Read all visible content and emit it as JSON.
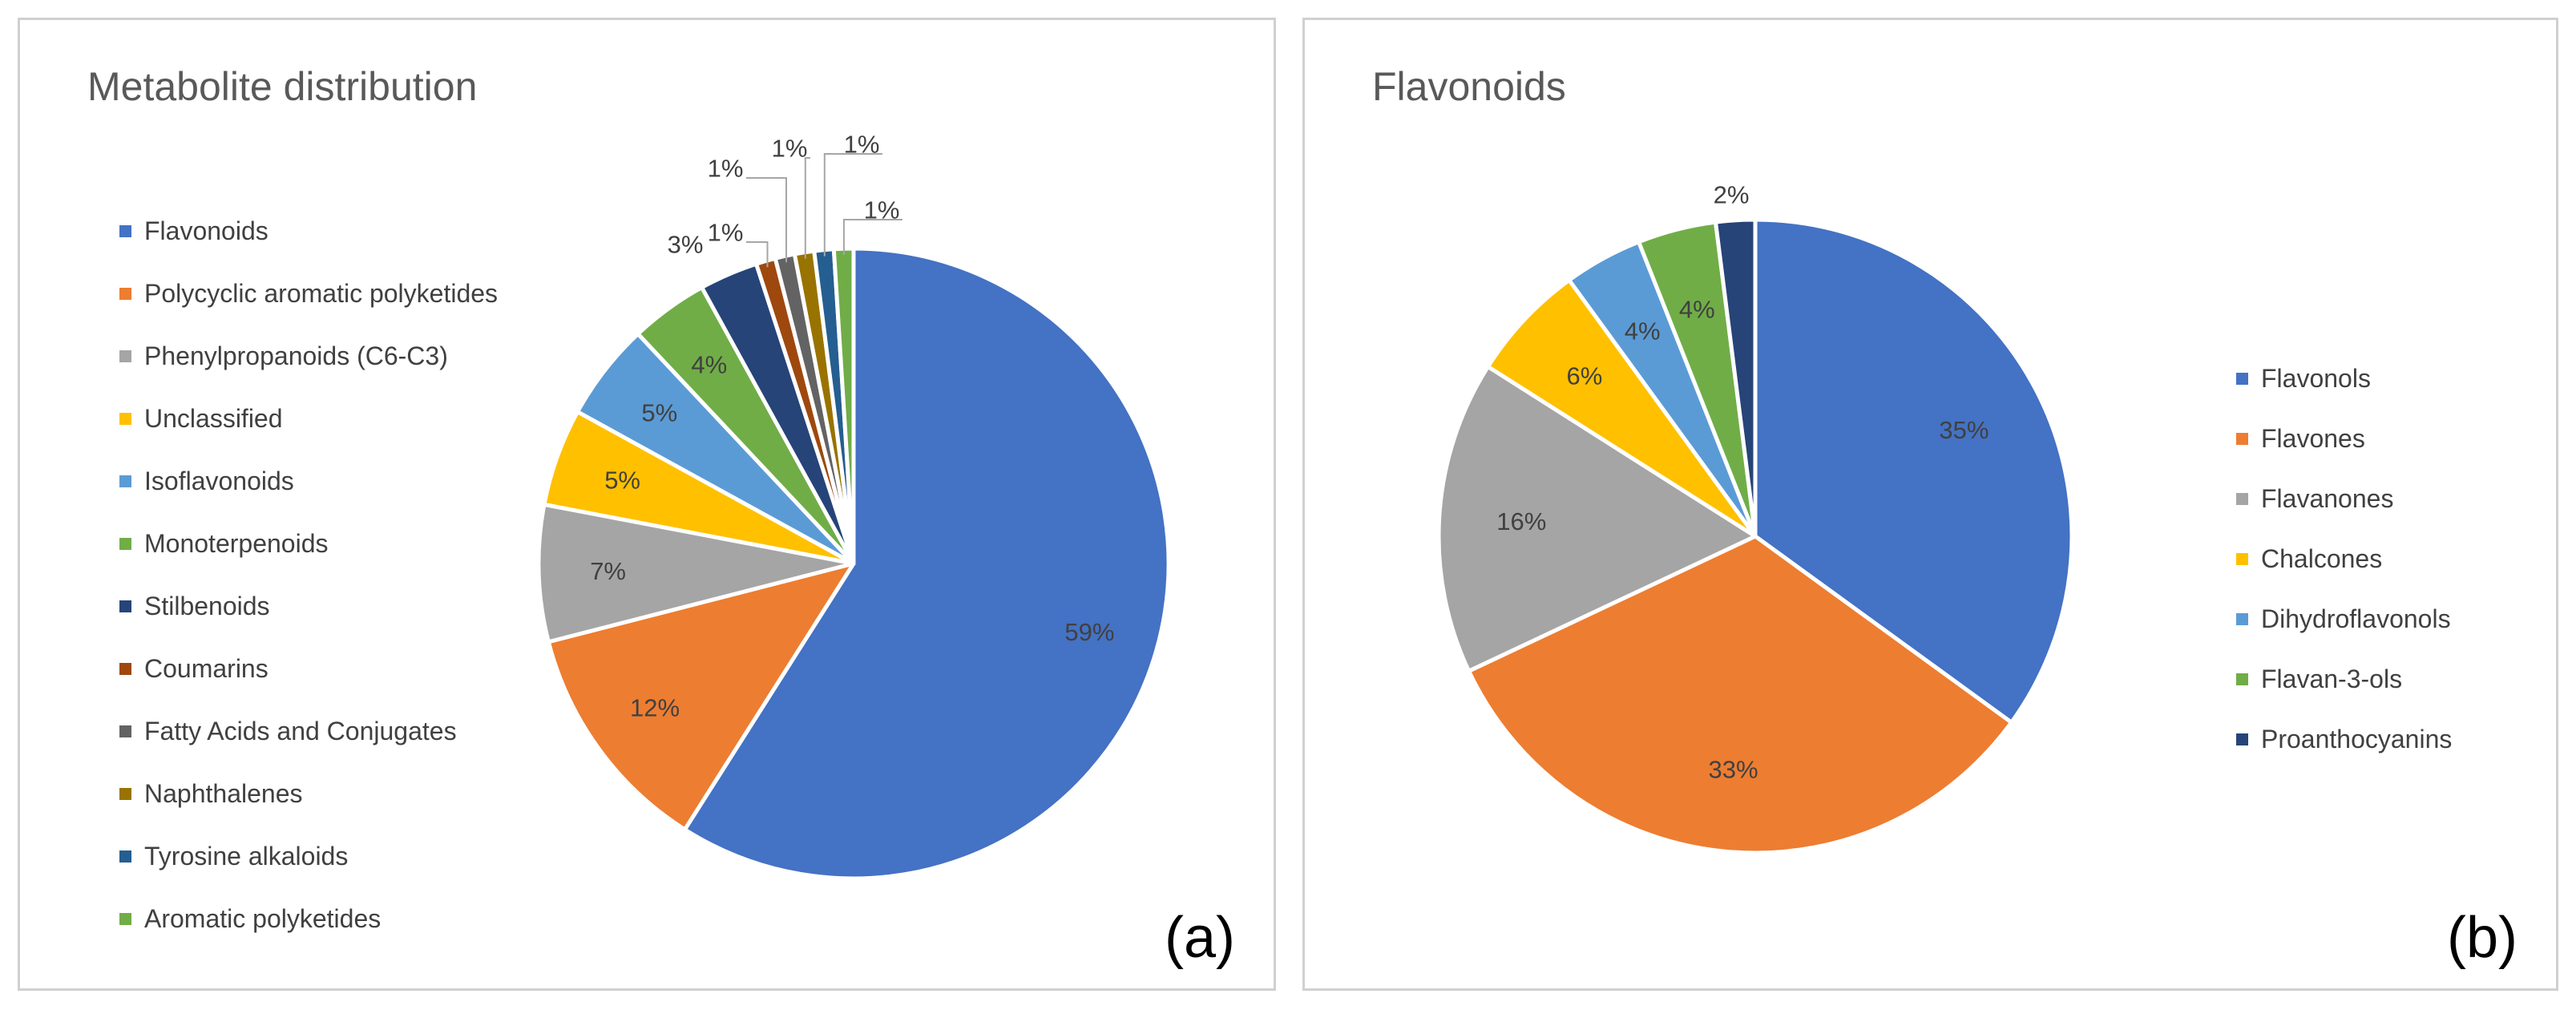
{
  "chart_data": [
    {
      "type": "pie",
      "title": "Metabolite distribution",
      "panel_label": "(a)",
      "start_angle_deg": 0,
      "direction": "clockwise",
      "legend_position": "left",
      "categories": [
        "Flavonoids",
        "Polycyclic aromatic polyketides",
        "Phenylpropanoids (C6-C3)",
        "Unclassified",
        "Isoflavonoids",
        "Monoterpenoids",
        "Stilbenoids",
        "Coumarins",
        "Fatty Acids and Conjugates",
        "Naphthalenes",
        "Tyrosine alkaloids",
        "Aromatic polyketides"
      ],
      "values": [
        59,
        12,
        7,
        5,
        5,
        4,
        3,
        1,
        1,
        1,
        1,
        1
      ],
      "labels": [
        "59%",
        "12%",
        "7%",
        "5%",
        "5%",
        "4%",
        "3%",
        "1%",
        "1%",
        "1%",
        "1%",
        "1%"
      ],
      "colors": [
        "#4472C4",
        "#ED7D31",
        "#A5A5A5",
        "#FFC000",
        "#5B9BD5",
        "#70AD47",
        "#264478",
        "#9E480E",
        "#636363",
        "#997300",
        "#255E91",
        "#70AD47"
      ]
    },
    {
      "type": "pie",
      "title": "Flavonoids",
      "panel_label": "(b)",
      "start_angle_deg": 0,
      "direction": "clockwise",
      "legend_position": "right",
      "categories": [
        "Flavonols",
        "Flavones",
        "Flavanones",
        "Chalcones",
        "Dihydroflavonols",
        "Flavan-3-ols",
        "Proanthocyanins"
      ],
      "values": [
        35,
        33,
        16,
        6,
        4,
        4,
        2
      ],
      "labels": [
        "35%",
        "33%",
        "16%",
        "6%",
        "4%",
        "4%",
        "2%"
      ],
      "colors": [
        "#4472C4",
        "#ED7D31",
        "#A5A5A5",
        "#FFC000",
        "#5B9BD5",
        "#70AD47",
        "#264478"
      ]
    }
  ]
}
